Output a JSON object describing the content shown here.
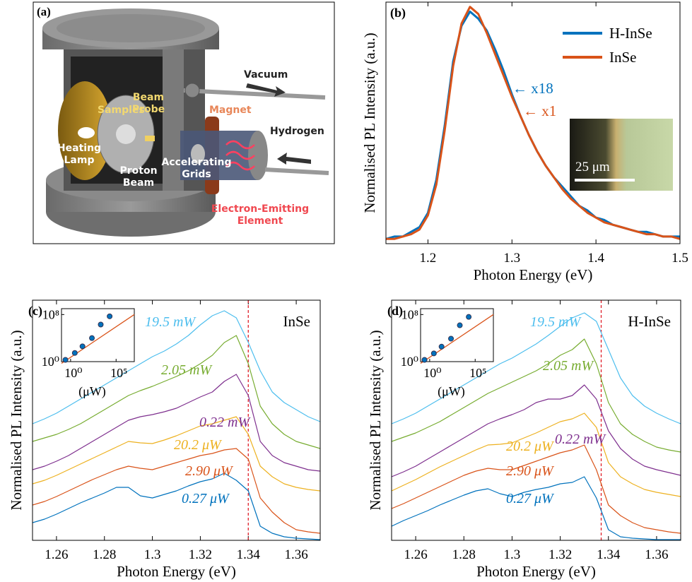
{
  "panel_a": {
    "label": "(a)",
    "annotations": [
      [
        "Vacuum"
      ],
      [
        "Hydrogen"
      ],
      [
        "Magnet"
      ],
      [
        "Samples"
      ],
      [
        "Beam",
        "Probe"
      ],
      [
        "Heating",
        "Lamp"
      ],
      [
        "Proton",
        "Beam"
      ],
      [
        "Accelerating",
        "Grids"
      ],
      [
        "Electron-Emitting",
        "Element"
      ]
    ]
  },
  "chart_data": [
    {
      "type": "line",
      "label": "(b)",
      "xlabel": "Photon Energy (eV)",
      "ylabel": "Normalised PL Intensity (a.u.)",
      "x": [
        1.15,
        1.16,
        1.17,
        1.18,
        1.19,
        1.2,
        1.21,
        1.22,
        1.23,
        1.24,
        1.25,
        1.26,
        1.27,
        1.28,
        1.29,
        1.3,
        1.31,
        1.32,
        1.33,
        1.34,
        1.35,
        1.36,
        1.37,
        1.38,
        1.39,
        1.4,
        1.41,
        1.42,
        1.43,
        1.44,
        1.45,
        1.46,
        1.47,
        1.48,
        1.49,
        1.5
      ],
      "series": [
        {
          "name": "H-InSe",
          "color": "#0072bd",
          "values": [
            0.02,
            0.03,
            0.03,
            0.05,
            0.07,
            0.13,
            0.27,
            0.5,
            0.77,
            0.92,
            0.98,
            0.95,
            0.9,
            0.82,
            0.73,
            0.63,
            0.54,
            0.46,
            0.39,
            0.33,
            0.28,
            0.24,
            0.2,
            0.16,
            0.14,
            0.11,
            0.1,
            0.08,
            0.07,
            0.06,
            0.05,
            0.05,
            0.04,
            0.03,
            0.03,
            0.03
          ]
        },
        {
          "name": "InSe",
          "color": "#d95319",
          "values": [
            0.02,
            0.02,
            0.03,
            0.04,
            0.06,
            0.12,
            0.25,
            0.48,
            0.75,
            0.93,
            1.0,
            0.97,
            0.89,
            0.8,
            0.71,
            0.62,
            0.54,
            0.46,
            0.39,
            0.33,
            0.28,
            0.23,
            0.19,
            0.16,
            0.13,
            0.11,
            0.09,
            0.08,
            0.07,
            0.06,
            0.05,
            0.04,
            0.04,
            0.03,
            0.03,
            0.02
          ]
        }
      ],
      "xlim": [
        1.15,
        1.5
      ],
      "xticks": [
        1.2,
        1.3,
        1.4,
        1.5
      ],
      "ylim": [
        0,
        1.02
      ],
      "legend": "upper right",
      "line_width": 3,
      "annotations": [
        {
          "text": "← x18",
          "color": "#0072bd"
        },
        {
          "text": "← x1",
          "color": "#d95319"
        }
      ],
      "scale_bar_label": "25 μm"
    },
    {
      "type": "line",
      "label": "(c)",
      "sample_label": "InSe",
      "xlabel": "Photon Energy (eV)",
      "ylabel": "Normalised PL Intensity (a.u.)",
      "x": [
        1.25,
        1.255,
        1.26,
        1.265,
        1.27,
        1.275,
        1.28,
        1.285,
        1.29,
        1.295,
        1.3,
        1.305,
        1.31,
        1.315,
        1.32,
        1.325,
        1.33,
        1.335,
        1.34,
        1.345,
        1.35,
        1.355,
        1.36,
        1.365,
        1.37
      ],
      "series": [
        {
          "name": "19.5 mW",
          "color": "#4dbeee",
          "values": [
            165,
            172,
            180,
            190,
            200,
            210,
            220,
            230,
            240,
            250,
            260,
            268,
            278,
            290,
            305,
            318,
            325,
            315,
            280,
            240,
            210,
            195,
            185,
            175,
            168
          ]
        },
        {
          "name": "2.05 mW",
          "color": "#77ac30",
          "values": [
            140,
            145,
            150,
            157,
            165,
            175,
            185,
            195,
            205,
            212,
            218,
            225,
            232,
            240,
            250,
            262,
            280,
            290,
            250,
            190,
            165,
            150,
            140,
            135,
            130
          ]
        },
        {
          "name": "0.22 mW",
          "color": "#7e2f8e",
          "values": [
            100,
            105,
            112,
            120,
            130,
            140,
            150,
            160,
            170,
            175,
            178,
            182,
            187,
            195,
            203,
            210,
            225,
            235,
            205,
            140,
            120,
            110,
            105,
            100,
            98
          ]
        },
        {
          "name": "20.2 μW",
          "color": "#edb120",
          "values": [
            80,
            85,
            92,
            100,
            108,
            116,
            124,
            132,
            140,
            138,
            137,
            142,
            148,
            155,
            162,
            165,
            170,
            175,
            150,
            105,
            90,
            80,
            75,
            72,
            70
          ]
        },
        {
          "name": "2.90 μW",
          "color": "#d95319",
          "values": [
            50,
            55,
            62,
            70,
            78,
            86,
            93,
            100,
            105,
            102,
            100,
            105,
            110,
            115,
            120,
            123,
            128,
            130,
            115,
            60,
            40,
            25,
            15,
            12,
            10
          ]
        },
        {
          "name": "0.27 μW",
          "color": "#0072bd",
          "values": [
            25,
            30,
            37,
            45,
            53,
            60,
            67,
            75,
            75,
            63,
            60,
            65,
            70,
            77,
            83,
            87,
            95,
            85,
            70,
            20,
            10,
            5,
            3,
            2,
            1
          ]
        }
      ],
      "xlim": [
        1.25,
        1.37
      ],
      "xticks": [
        1.26,
        1.28,
        1.3,
        1.32,
        1.34,
        1.36
      ],
      "ylim": [
        0,
        340
      ],
      "line_width": 1.2,
      "vline": 1.34,
      "vline_color": "#e0202a",
      "inset": {
        "log": true,
        "xlabel": "(μW)",
        "xlim": [
          0.1,
          10000000
        ],
        "ylim": [
          1,
          1000000000
        ],
        "xticks": [
          {
            "value": 1,
            "label": "10⁰"
          },
          {
            "value": 100000,
            "label": "10⁵"
          }
        ],
        "yticks": [
          {
            "value": 1,
            "label": "10⁰"
          },
          {
            "value": 100000000,
            "label": "10⁸"
          }
        ],
        "points": {
          "color": "#0072bd",
          "x": [
            0.27,
            2.9,
            20.2,
            220,
            2050,
            19500
          ],
          "y": [
            2,
            30,
            400,
            10000,
            2000000,
            50000000
          ]
        },
        "fit": {
          "color": "#d95319",
          "x": [
            0.1,
            10000000
          ],
          "y": [
            0.5,
            100000000
          ]
        }
      }
    },
    {
      "type": "line",
      "label": "(d)",
      "sample_label": "H-InSe",
      "xlabel": "Photon Energy (eV)",
      "ylabel": "Normalised PL Intensity (a.u.)",
      "x": [
        1.25,
        1.255,
        1.26,
        1.265,
        1.27,
        1.275,
        1.28,
        1.285,
        1.29,
        1.295,
        1.3,
        1.305,
        1.31,
        1.315,
        1.32,
        1.325,
        1.33,
        1.335,
        1.34,
        1.345,
        1.35,
        1.355,
        1.36,
        1.365,
        1.37
      ],
      "series": [
        {
          "name": "19.5 mW",
          "color": "#4dbeee",
          "values": [
            165,
            172,
            180,
            190,
            200,
            210,
            220,
            230,
            240,
            250,
            258,
            268,
            278,
            290,
            303,
            315,
            322,
            310,
            270,
            230,
            205,
            190,
            180,
            172,
            165
          ]
        },
        {
          "name": "2.05 mW",
          "color": "#77ac30",
          "values": [
            140,
            146,
            152,
            160,
            168,
            178,
            188,
            198,
            208,
            216,
            224,
            232,
            240,
            250,
            262,
            270,
            285,
            250,
            195,
            165,
            150,
            140,
            132,
            128,
            125
          ]
        },
        {
          "name": "0.22 mW",
          "color": "#7e2f8e",
          "values": [
            90,
            97,
            105,
            115,
            125,
            135,
            145,
            155,
            165,
            172,
            178,
            185,
            195,
            200,
            200,
            205,
            220,
            200,
            155,
            130,
            115,
            105,
            100,
            96,
            92
          ]
        },
        {
          "name": "20.2 μW",
          "color": "#edb120",
          "values": [
            70,
            78,
            86,
            95,
            104,
            112,
            120,
            128,
            135,
            136,
            138,
            145,
            152,
            160,
            168,
            172,
            180,
            160,
            110,
            90,
            80,
            72,
            68,
            65,
            62
          ]
        },
        {
          "name": "2.90 μW",
          "color": "#d95319",
          "values": [
            45,
            52,
            60,
            68,
            76,
            84,
            92,
            98,
            102,
            100,
            100,
            106,
            112,
            118,
            124,
            128,
            135,
            100,
            50,
            35,
            25,
            18,
            15,
            12,
            10
          ]
        },
        {
          "name": "0.27 μW",
          "color": "#0072bd",
          "values": [
            20,
            28,
            35,
            42,
            50,
            57,
            64,
            70,
            73,
            66,
            62,
            68,
            72,
            75,
            80,
            82,
            90,
            60,
            15,
            5,
            3,
            2,
            1,
            1,
            1
          ]
        }
      ],
      "xlim": [
        1.25,
        1.37
      ],
      "xticks": [
        1.26,
        1.28,
        1.3,
        1.32,
        1.34,
        1.36
      ],
      "ylim": [
        0,
        340
      ],
      "line_width": 1.2,
      "vline": 1.337,
      "vline_color": "#e0202a",
      "inset": {
        "log": true,
        "xlabel": "(μW)",
        "xlim": [
          0.1,
          10000000
        ],
        "ylim": [
          1,
          1000000000
        ],
        "xticks": [
          {
            "value": 1,
            "label": "10⁰"
          },
          {
            "value": 100000,
            "label": "10⁵"
          }
        ],
        "yticks": [
          {
            "value": 1,
            "label": "10⁰"
          },
          {
            "value": 100000000,
            "label": "10⁸"
          }
        ],
        "points": {
          "color": "#0072bd",
          "x": [
            0.27,
            2.9,
            20.2,
            220,
            2050,
            19500
          ],
          "y": [
            2,
            25,
            350,
            8000,
            1500000,
            40000000
          ]
        },
        "fit": {
          "color": "#d95319",
          "x": [
            0.1,
            10000000
          ],
          "y": [
            0.5,
            100000000
          ]
        }
      }
    }
  ]
}
